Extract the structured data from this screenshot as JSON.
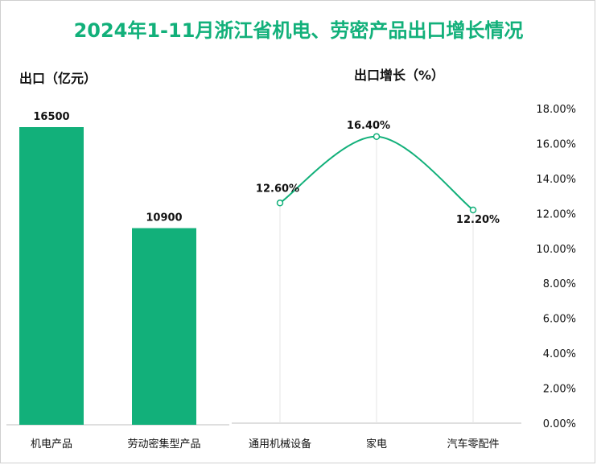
{
  "title": "2024年1-11月浙江省机电、劳密产品出口增长情况",
  "colors": {
    "accent": "#12b07a",
    "axis": "#bfbfbf",
    "grid": "#e6e6e6",
    "text": "#111111"
  },
  "chart_data": [
    {
      "type": "bar",
      "title": "出口（亿元）",
      "categories": [
        "机电产品",
        "劳动密集型产品"
      ],
      "values": [
        16500,
        10900
      ],
      "value_labels": [
        "16500",
        "10900"
      ],
      "ylim": [
        0,
        17000
      ]
    },
    {
      "type": "line",
      "title": "出口增长（%）",
      "categories": [
        "通用机械设备",
        "家电",
        "汽车零配件"
      ],
      "values": [
        12.6,
        16.4,
        12.2
      ],
      "value_labels": [
        "12.60%",
        "16.40%",
        "12.20%"
      ],
      "ylim": [
        0,
        18
      ],
      "yticks": [
        "0.00%",
        "2.00%",
        "4.00%",
        "6.00%",
        "8.00%",
        "10.00%",
        "12.00%",
        "14.00%",
        "16.00%",
        "18.00%"
      ],
      "smooth": true
    }
  ]
}
